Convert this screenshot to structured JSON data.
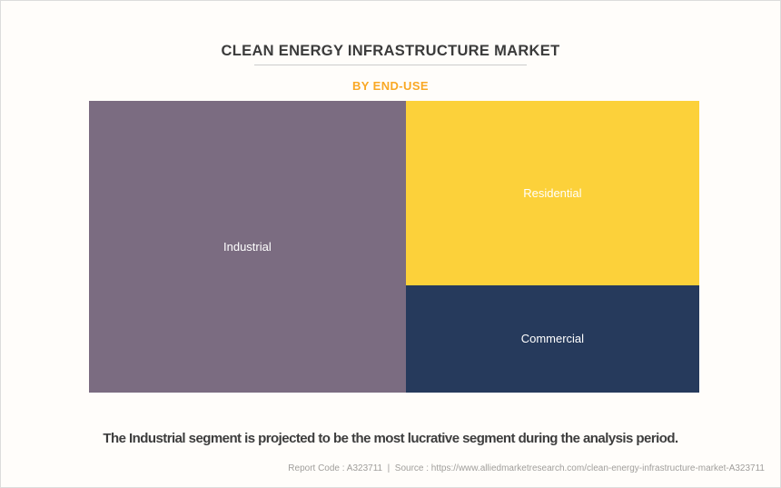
{
  "header": {
    "title": "CLEAN ENERGY INFRASTRUCTURE MARKET",
    "subtitle": "BY END-USE"
  },
  "chart_data": {
    "type": "treemap",
    "title": "CLEAN ENERGY INFRASTRUCTURE MARKET",
    "group_by": "END-USE",
    "legend": "none",
    "label_color": "#FFFFFF",
    "segments": [
      {
        "label": "Industrial",
        "share_pct": 52,
        "color": "#7B6C81",
        "width": "51.9%",
        "height": "100%"
      },
      {
        "label": "Residential",
        "share_pct": 30,
        "color": "#FCD13A",
        "width": "48.1%",
        "height": "63.2%"
      },
      {
        "label": "Commercial",
        "share_pct": 18,
        "color": "#263A5C",
        "width": "48.1%",
        "height": "36.8%"
      }
    ]
  },
  "footer": {
    "note": "The Industrial segment is projected to be the most lucrative segment during the analysis period.",
    "source_line": "Report Code : A323711  |  Source : https://www.alliedmarketresearch.com/clean-energy-infrastructure-market-A323711"
  },
  "colors": {
    "background": "#FFFDFA",
    "border": "#DCDCDC",
    "title_text": "#3B3B3B",
    "subtitle_accent": "#F9A825",
    "divider": "#CCCCCC",
    "note_text": "#3D3D3D",
    "source_text": "#A09E9B"
  }
}
